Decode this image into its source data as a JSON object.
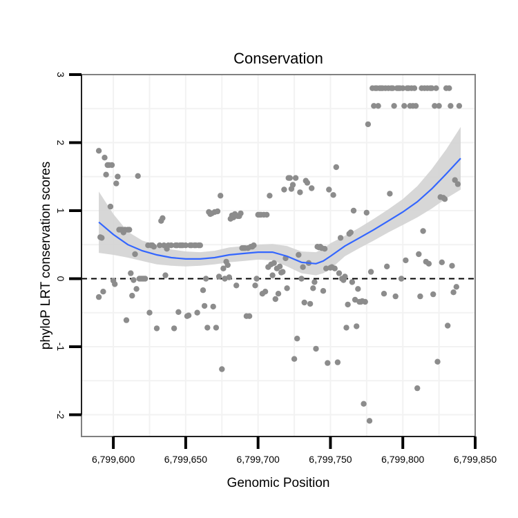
{
  "chart_data": {
    "type": "scatter",
    "title": "Conservation",
    "xlabel": "Genomic Position",
    "ylabel": "phyloP LRT conservation scores",
    "xlim": [
      6799578,
      6799850
    ],
    "ylim": [
      -2.32,
      3.0
    ],
    "x_ticks": [
      6799600,
      6799650,
      6799700,
      6799750,
      6799800,
      6799850
    ],
    "x_tick_labels": [
      "6,799,600",
      "6,799,650",
      "6,799,700",
      "6,799,750",
      "6,799,800",
      "6,799,850"
    ],
    "y_ticks": [
      -2,
      -1,
      0,
      1,
      2,
      3
    ],
    "y_tick_labels": [
      "-2",
      "-1",
      "0",
      "1",
      "2",
      "3"
    ],
    "reference_line": {
      "y": 0,
      "style": "dashed"
    },
    "colors": {
      "points": "#8c8c8c",
      "smooth": "#3366ff",
      "band": "#d3d3d3",
      "frame": "#808080",
      "grid": "#f2f2f2"
    },
    "points": [
      [
        6799590,
        1.88
      ],
      [
        6799590,
        -0.27
      ],
      [
        6799591,
        0.61
      ],
      [
        6799592,
        0.6
      ],
      [
        6799593,
        -0.19
      ],
      [
        6799594,
        1.78
      ],
      [
        6799595,
        1.53
      ],
      [
        6799596,
        1.67
      ],
      [
        6799597,
        1.67
      ],
      [
        6799598,
        1.06
      ],
      [
        6799599,
        1.67
      ],
      [
        6799600,
        -0.03
      ],
      [
        6799601,
        -0.08
      ],
      [
        6799602,
        1.4
      ],
      [
        6799603,
        1.5
      ],
      [
        6799604,
        0.72
      ],
      [
        6799605,
        0.72
      ],
      [
        6799606,
        0.72
      ],
      [
        6799607,
        0.68
      ],
      [
        6799608,
        0.72
      ],
      [
        6799609,
        -0.61
      ],
      [
        6799610,
        0.72
      ],
      [
        6799611,
        0.72
      ],
      [
        6799612,
        0.08
      ],
      [
        6799613,
        -0.25
      ],
      [
        6799614,
        -0.02
      ],
      [
        6799615,
        0.36
      ],
      [
        6799616,
        -0.15
      ],
      [
        6799617,
        1.51
      ],
      [
        6799618,
        0.0
      ],
      [
        6799619,
        0.0
      ],
      [
        6799620,
        0.0
      ],
      [
        6799621,
        0.0
      ],
      [
        6799622,
        0.0
      ],
      [
        6799624,
        0.49
      ],
      [
        6799625,
        -0.5
      ],
      [
        6799626,
        0.49
      ],
      [
        6799627,
        0.49
      ],
      [
        6799628,
        0.47
      ],
      [
        6799630,
        -0.73
      ],
      [
        6799632,
        0.49
      ],
      [
        6799633,
        0.85
      ],
      [
        6799634,
        0.89
      ],
      [
        6799635,
        0.49
      ],
      [
        6799636,
        0.05
      ],
      [
        6799637,
        0.44
      ],
      [
        6799638,
        0.49
      ],
      [
        6799640,
        0.49
      ],
      [
        6799642,
        -0.73
      ],
      [
        6799643,
        0.49
      ],
      [
        6799644,
        0.49
      ],
      [
        6799645,
        -0.49
      ],
      [
        6799646,
        0.49
      ],
      [
        6799647,
        0.49
      ],
      [
        6799648,
        0.49
      ],
      [
        6799650,
        0.49
      ],
      [
        6799651,
        -0.55
      ],
      [
        6799652,
        -0.54
      ],
      [
        6799653,
        0.49
      ],
      [
        6799654,
        0.49
      ],
      [
        6799656,
        0.49
      ],
      [
        6799657,
        0.49
      ],
      [
        6799658,
        -0.5
      ],
      [
        6799659,
        0.49
      ],
      [
        6799660,
        0.49
      ],
      [
        6799662,
        -0.17
      ],
      [
        6799663,
        -0.4
      ],
      [
        6799664,
        0.0
      ],
      [
        6799665,
        -0.72
      ],
      [
        6799666,
        0.98
      ],
      [
        6799667,
        0.95
      ],
      [
        6799668,
        0.96
      ],
      [
        6799669,
        -0.41
      ],
      [
        6799670,
        0.98
      ],
      [
        6799671,
        -0.72
      ],
      [
        6799672,
        0.99
      ],
      [
        6799673,
        0.03
      ],
      [
        6799674,
        1.22
      ],
      [
        6799675,
        -1.33
      ],
      [
        6799676,
        0.15
      ],
      [
        6799677,
        0.0
      ],
      [
        6799678,
        0.25
      ],
      [
        6799679,
        0.2
      ],
      [
        6799680,
        0.02
      ],
      [
        6799681,
        0.88
      ],
      [
        6799682,
        0.93
      ],
      [
        6799683,
        0.9
      ],
      [
        6799684,
        0.95
      ],
      [
        6799685,
        -0.1
      ],
      [
        6799686,
        0.92
      ],
      [
        6799687,
        0.92
      ],
      [
        6799688,
        0.96
      ],
      [
        6799689,
        0.45
      ],
      [
        6799690,
        0.45
      ],
      [
        6799691,
        0.45
      ],
      [
        6799692,
        -0.55
      ],
      [
        6799693,
        0.45
      ],
      [
        6799694,
        -0.55
      ],
      [
        6799695,
        0.47
      ],
      [
        6799696,
        0.47
      ],
      [
        6799697,
        0.49
      ],
      [
        6799698,
        -0.1
      ],
      [
        6799699,
        0.0
      ],
      [
        6799700,
        0.94
      ],
      [
        6799701,
        0.94
      ],
      [
        6799702,
        0.94
      ],
      [
        6799703,
        -0.22
      ],
      [
        6799704,
        0.94
      ],
      [
        6799705,
        -0.19
      ],
      [
        6799706,
        0.94
      ],
      [
        6799707,
        0.17
      ],
      [
        6799708,
        1.22
      ],
      [
        6799709,
        0.21
      ],
      [
        6799710,
        0.05
      ],
      [
        6799711,
        0.23
      ],
      [
        6799712,
        -0.3
      ],
      [
        6799713,
        0.15
      ],
      [
        6799714,
        -0.22
      ],
      [
        6799715,
        0.18
      ],
      [
        6799716,
        0.09
      ],
      [
        6799717,
        0.1
      ],
      [
        6799718,
        1.31
      ],
      [
        6799719,
        0.3
      ],
      [
        6799720,
        -0.14
      ],
      [
        6799721,
        1.48
      ],
      [
        6799722,
        1.48
      ],
      [
        6799723,
        1.32
      ],
      [
        6799724,
        1.38
      ],
      [
        6799725,
        -1.18
      ],
      [
        6799726,
        1.48
      ],
      [
        6799727,
        -0.88
      ],
      [
        6799728,
        0.35
      ],
      [
        6799729,
        1.27
      ],
      [
        6799730,
        0.0
      ],
      [
        6799731,
        0.17
      ],
      [
        6799732,
        -0.35
      ],
      [
        6799733,
        1.44
      ],
      [
        6799734,
        1.41
      ],
      [
        6799735,
        0.23
      ],
      [
        6799736,
        -0.37
      ],
      [
        6799737,
        1.33
      ],
      [
        6799738,
        -0.14
      ],
      [
        6799739,
        -0.05
      ],
      [
        6799740,
        -1.03
      ],
      [
        6799741,
        0.47
      ],
      [
        6799742,
        0.46
      ],
      [
        6799743,
        0.47
      ],
      [
        6799744,
        0.45
      ],
      [
        6799745,
        -0.18
      ],
      [
        6799746,
        0.44
      ],
      [
        6799747,
        0.15
      ],
      [
        6799748,
        -1.24
      ],
      [
        6799749,
        1.31
      ],
      [
        6799750,
        0.16
      ],
      [
        6799751,
        0.17
      ],
      [
        6799752,
        1.23
      ],
      [
        6799753,
        0.15
      ],
      [
        6799754,
        1.64
      ],
      [
        6799755,
        -1.23
      ],
      [
        6799756,
        0.08
      ],
      [
        6799757,
        0.6
      ],
      [
        6799758,
        0.0
      ],
      [
        6799759,
        -0.02
      ],
      [
        6799760,
        0.03
      ],
      [
        6799761,
        -0.72
      ],
      [
        6799762,
        -0.38
      ],
      [
        6799763,
        0.66
      ],
      [
        6799764,
        0.68
      ],
      [
        6799765,
        -0.05
      ],
      [
        6799766,
        1.0
      ],
      [
        6799767,
        -0.31
      ],
      [
        6799768,
        -0.7
      ],
      [
        6799769,
        -0.15
      ],
      [
        6799770,
        -0.34
      ],
      [
        6799771,
        -0.34
      ],
      [
        6799772,
        -0.33
      ],
      [
        6799773,
        -1.84
      ],
      [
        6799774,
        -0.34
      ],
      [
        6799775,
        0.97
      ],
      [
        6799776,
        2.27
      ],
      [
        6799777,
        -2.09
      ],
      [
        6799778,
        0.1
      ],
      [
        6799779,
        2.8
      ],
      [
        6799780,
        2.54
      ],
      [
        6799781,
        2.8
      ],
      [
        6799782,
        2.8
      ],
      [
        6799783,
        2.54
      ],
      [
        6799784,
        2.8
      ],
      [
        6799785,
        2.8
      ],
      [
        6799786,
        2.8
      ],
      [
        6799787,
        -0.22
      ],
      [
        6799788,
        2.8
      ],
      [
        6799789,
        0.18
      ],
      [
        6799790,
        2.8
      ],
      [
        6799791,
        1.25
      ],
      [
        6799792,
        2.8
      ],
      [
        6799793,
        2.8
      ],
      [
        6799794,
        2.54
      ],
      [
        6799795,
        -0.26
      ],
      [
        6799796,
        2.8
      ],
      [
        6799797,
        2.8
      ],
      [
        6799798,
        2.8
      ],
      [
        6799799,
        0.0
      ],
      [
        6799800,
        2.8
      ],
      [
        6799801,
        2.54
      ],
      [
        6799802,
        0.27
      ],
      [
        6799803,
        2.8
      ],
      [
        6799804,
        2.8
      ],
      [
        6799805,
        2.54
      ],
      [
        6799806,
        2.8
      ],
      [
        6799807,
        2.54
      ],
      [
        6799808,
        2.8
      ],
      [
        6799809,
        2.54
      ],
      [
        6799810,
        -1.61
      ],
      [
        6799811,
        0.36
      ],
      [
        6799812,
        -0.26
      ],
      [
        6799813,
        2.8
      ],
      [
        6799814,
        0.7
      ],
      [
        6799815,
        2.8
      ],
      [
        6799816,
        0.25
      ],
      [
        6799817,
        2.8
      ],
      [
        6799818,
        0.22
      ],
      [
        6799819,
        2.8
      ],
      [
        6799820,
        2.8
      ],
      [
        6799821,
        -0.23
      ],
      [
        6799822,
        2.54
      ],
      [
        6799823,
        2.8
      ],
      [
        6799824,
        -1.22
      ],
      [
        6799825,
        2.54
      ],
      [
        6799826,
        1.2
      ],
      [
        6799827,
        0.24
      ],
      [
        6799828,
        1.19
      ],
      [
        6799829,
        1.17
      ],
      [
        6799830,
        2.8
      ],
      [
        6799831,
        -0.69
      ],
      [
        6799832,
        2.8
      ],
      [
        6799833,
        2.54
      ],
      [
        6799834,
        0.19
      ],
      [
        6799835,
        -0.2
      ],
      [
        6799836,
        1.45
      ],
      [
        6799837,
        -0.12
      ],
      [
        6799838,
        1.39
      ],
      [
        6799839,
        2.54
      ]
    ],
    "smooth": {
      "x": [
        6799590,
        6799600,
        6799610,
        6799620,
        6799630,
        6799640,
        6799650,
        6799660,
        6799670,
        6799680,
        6799690,
        6799700,
        6799710,
        6799720,
        6799730,
        6799740,
        6799745,
        6799750,
        6799760,
        6799770,
        6799780,
        6799790,
        6799800,
        6799810,
        6799820,
        6799830,
        6799840
      ],
      "y": [
        0.83,
        0.65,
        0.5,
        0.41,
        0.35,
        0.31,
        0.29,
        0.29,
        0.31,
        0.35,
        0.37,
        0.39,
        0.39,
        0.33,
        0.24,
        0.22,
        0.26,
        0.33,
        0.48,
        0.6,
        0.72,
        0.85,
        0.98,
        1.13,
        1.32,
        1.54,
        1.77
      ],
      "lower": [
        0.38,
        0.35,
        0.31,
        0.26,
        0.21,
        0.19,
        0.18,
        0.19,
        0.21,
        0.24,
        0.26,
        0.28,
        0.27,
        0.18,
        0.08,
        0.05,
        0.08,
        0.14,
        0.33,
        0.45,
        0.56,
        0.68,
        0.79,
        0.9,
        1.03,
        1.18,
        1.31
      ],
      "upper": [
        1.28,
        0.95,
        0.69,
        0.56,
        0.49,
        0.43,
        0.4,
        0.39,
        0.41,
        0.46,
        0.48,
        0.5,
        0.51,
        0.48,
        0.4,
        0.39,
        0.44,
        0.52,
        0.63,
        0.75,
        0.88,
        1.02,
        1.17,
        1.36,
        1.61,
        1.9,
        2.23
      ]
    }
  }
}
